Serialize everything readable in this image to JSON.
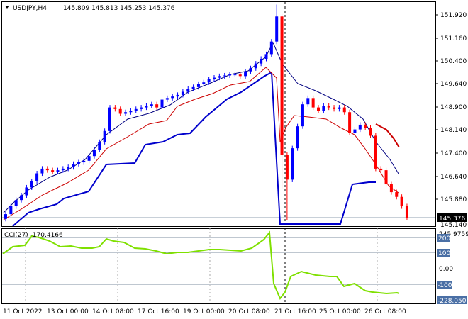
{
  "header": {
    "symbol": "USDJPY,H4",
    "ohlc": "145.809 145.813 145.253 145.376"
  },
  "indicator": {
    "label": "CCI(27) -170.4166",
    "top_value": "245.9759",
    "bottom_value": "-228.0501",
    "levels": [
      {
        "value": 200,
        "label": "200"
      },
      {
        "value": 100,
        "label": "100"
      },
      {
        "value": 0,
        "label": "0.00"
      },
      {
        "value": -100,
        "label": "-100"
      }
    ],
    "range": [
      -228.05,
      245.98
    ]
  },
  "price_axis": {
    "ticks": [
      "151.920",
      "151.160",
      "150.400",
      "149.640",
      "148.900",
      "148.140",
      "147.400",
      "146.640",
      "145.880",
      "145.140"
    ],
    "current_label": "145.376",
    "range": [
      145.14,
      152.1
    ]
  },
  "time_axis": {
    "labels": [
      "11 Oct 2022",
      "13 Oct 00:00",
      "14 Oct 08:00",
      "17 Oct 16:00",
      "19 Oct 00:00",
      "20 Oct 08:00",
      "21 Oct 16:00",
      "25 Oct 00:00",
      "26 Oct 08:00"
    ]
  },
  "colors": {
    "bull": "#0000ff",
    "bear": "#ff0000",
    "ma_fast": "#000080",
    "ma_mid": "#cc0000",
    "ma_slow": "#0000cc",
    "cci": "#7fe000",
    "current_line": "#90a0b0"
  },
  "chart_data": {
    "type": "candlestick",
    "title": "USDJPY,H4",
    "close": [
      145.5,
      145.75,
      145.95,
      146.1,
      146.35,
      146.55,
      146.8,
      146.95,
      146.9,
      146.85,
      146.9,
      146.95,
      147.0,
      147.1,
      147.15,
      147.2,
      147.35,
      147.55,
      147.8,
      148.15,
      148.9,
      148.85,
      148.7,
      148.75,
      148.8,
      148.85,
      148.9,
      148.95,
      149.0,
      148.9,
      149.15,
      149.2,
      149.25,
      149.3,
      149.4,
      149.5,
      149.55,
      149.65,
      149.7,
      149.8,
      149.85,
      149.9,
      149.92,
      149.95,
      149.95,
      149.9,
      150.05,
      150.15,
      150.3,
      150.45,
      150.6,
      151.0,
      151.8,
      147.4,
      146.6,
      147.6,
      148.3,
      149.0,
      149.2,
      148.9,
      148.8,
      148.95,
      148.9,
      148.85,
      148.9,
      148.75,
      148.1,
      148.2,
      148.35,
      148.25,
      148.0,
      146.95,
      146.9,
      146.45,
      146.2,
      146.05,
      145.75,
      145.38
    ],
    "ylim": [
      145.14,
      152.1
    ]
  }
}
